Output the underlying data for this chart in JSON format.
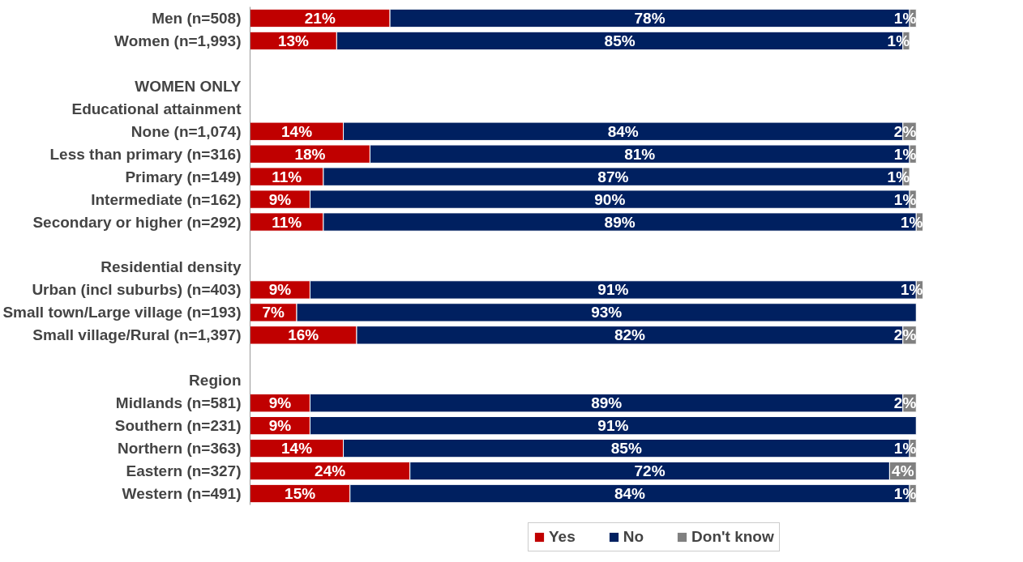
{
  "chart_data": {
    "type": "bar",
    "orientation": "horizontal",
    "stacked": true,
    "categories": [
      "Men (n=508)",
      "Women (n=1,993)",
      null,
      "WOMEN ONLY",
      "Educational attainment",
      "None (n=1,074)",
      "Less than primary (n=316)",
      "Primary (n=149)",
      "Intermediate (n=162)",
      "Secondary or higher (n=292)",
      null,
      "Residential density",
      "Urban (incl suburbs) (n=403)",
      "Small town/Large village (n=193)",
      "Small village/Rural (n=1,397)",
      null,
      "Region",
      "Midlands (n=581)",
      "Southern (n=231)",
      "Northern (n=363)",
      "Eastern (n=327)",
      "Western (n=491)"
    ],
    "series": [
      {
        "name": "Yes",
        "color": "#c00000",
        "values": [
          21,
          13,
          null,
          null,
          null,
          14,
          18,
          11,
          9,
          11,
          null,
          null,
          9,
          7,
          16,
          null,
          null,
          9,
          9,
          14,
          24,
          15
        ],
        "value_labels": [
          "21%",
          "13%",
          null,
          null,
          null,
          "14%",
          "18%",
          "11%",
          "9%",
          "11%",
          null,
          null,
          "9%",
          "7%",
          "16%",
          null,
          null,
          "9%",
          "9%",
          "14%",
          "24%",
          "15%"
        ]
      },
      {
        "name": "No",
        "color": "#002060",
        "values": [
          78,
          85,
          null,
          null,
          null,
          84,
          81,
          87,
          90,
          89,
          null,
          null,
          91,
          93,
          82,
          null,
          null,
          89,
          91,
          85,
          72,
          84
        ],
        "value_labels": [
          "78%",
          "85%",
          null,
          null,
          null,
          "84%",
          "81%",
          "87%",
          "90%",
          "89%",
          null,
          null,
          "91%",
          "93%",
          "82%",
          null,
          null,
          "89%",
          "91%",
          "85%",
          "72%",
          "84%"
        ]
      },
      {
        "name": "Don't know",
        "color": "#808080",
        "values": [
          1,
          1,
          null,
          null,
          null,
          2,
          1,
          1,
          1,
          1,
          null,
          null,
          1,
          null,
          2,
          null,
          null,
          2,
          null,
          1,
          4,
          1
        ],
        "value_labels": [
          "1%",
          "1%",
          null,
          null,
          null,
          "2%",
          "1%",
          "1%",
          "1%",
          "1%",
          null,
          null,
          "1%",
          null,
          "2%",
          null,
          null,
          "2%",
          null,
          "1%",
          "4%",
          "1%"
        ]
      }
    ],
    "xlim": [
      0,
      101
    ],
    "tick_labels": "y",
    "grid": false,
    "legend": "bottom"
  }
}
